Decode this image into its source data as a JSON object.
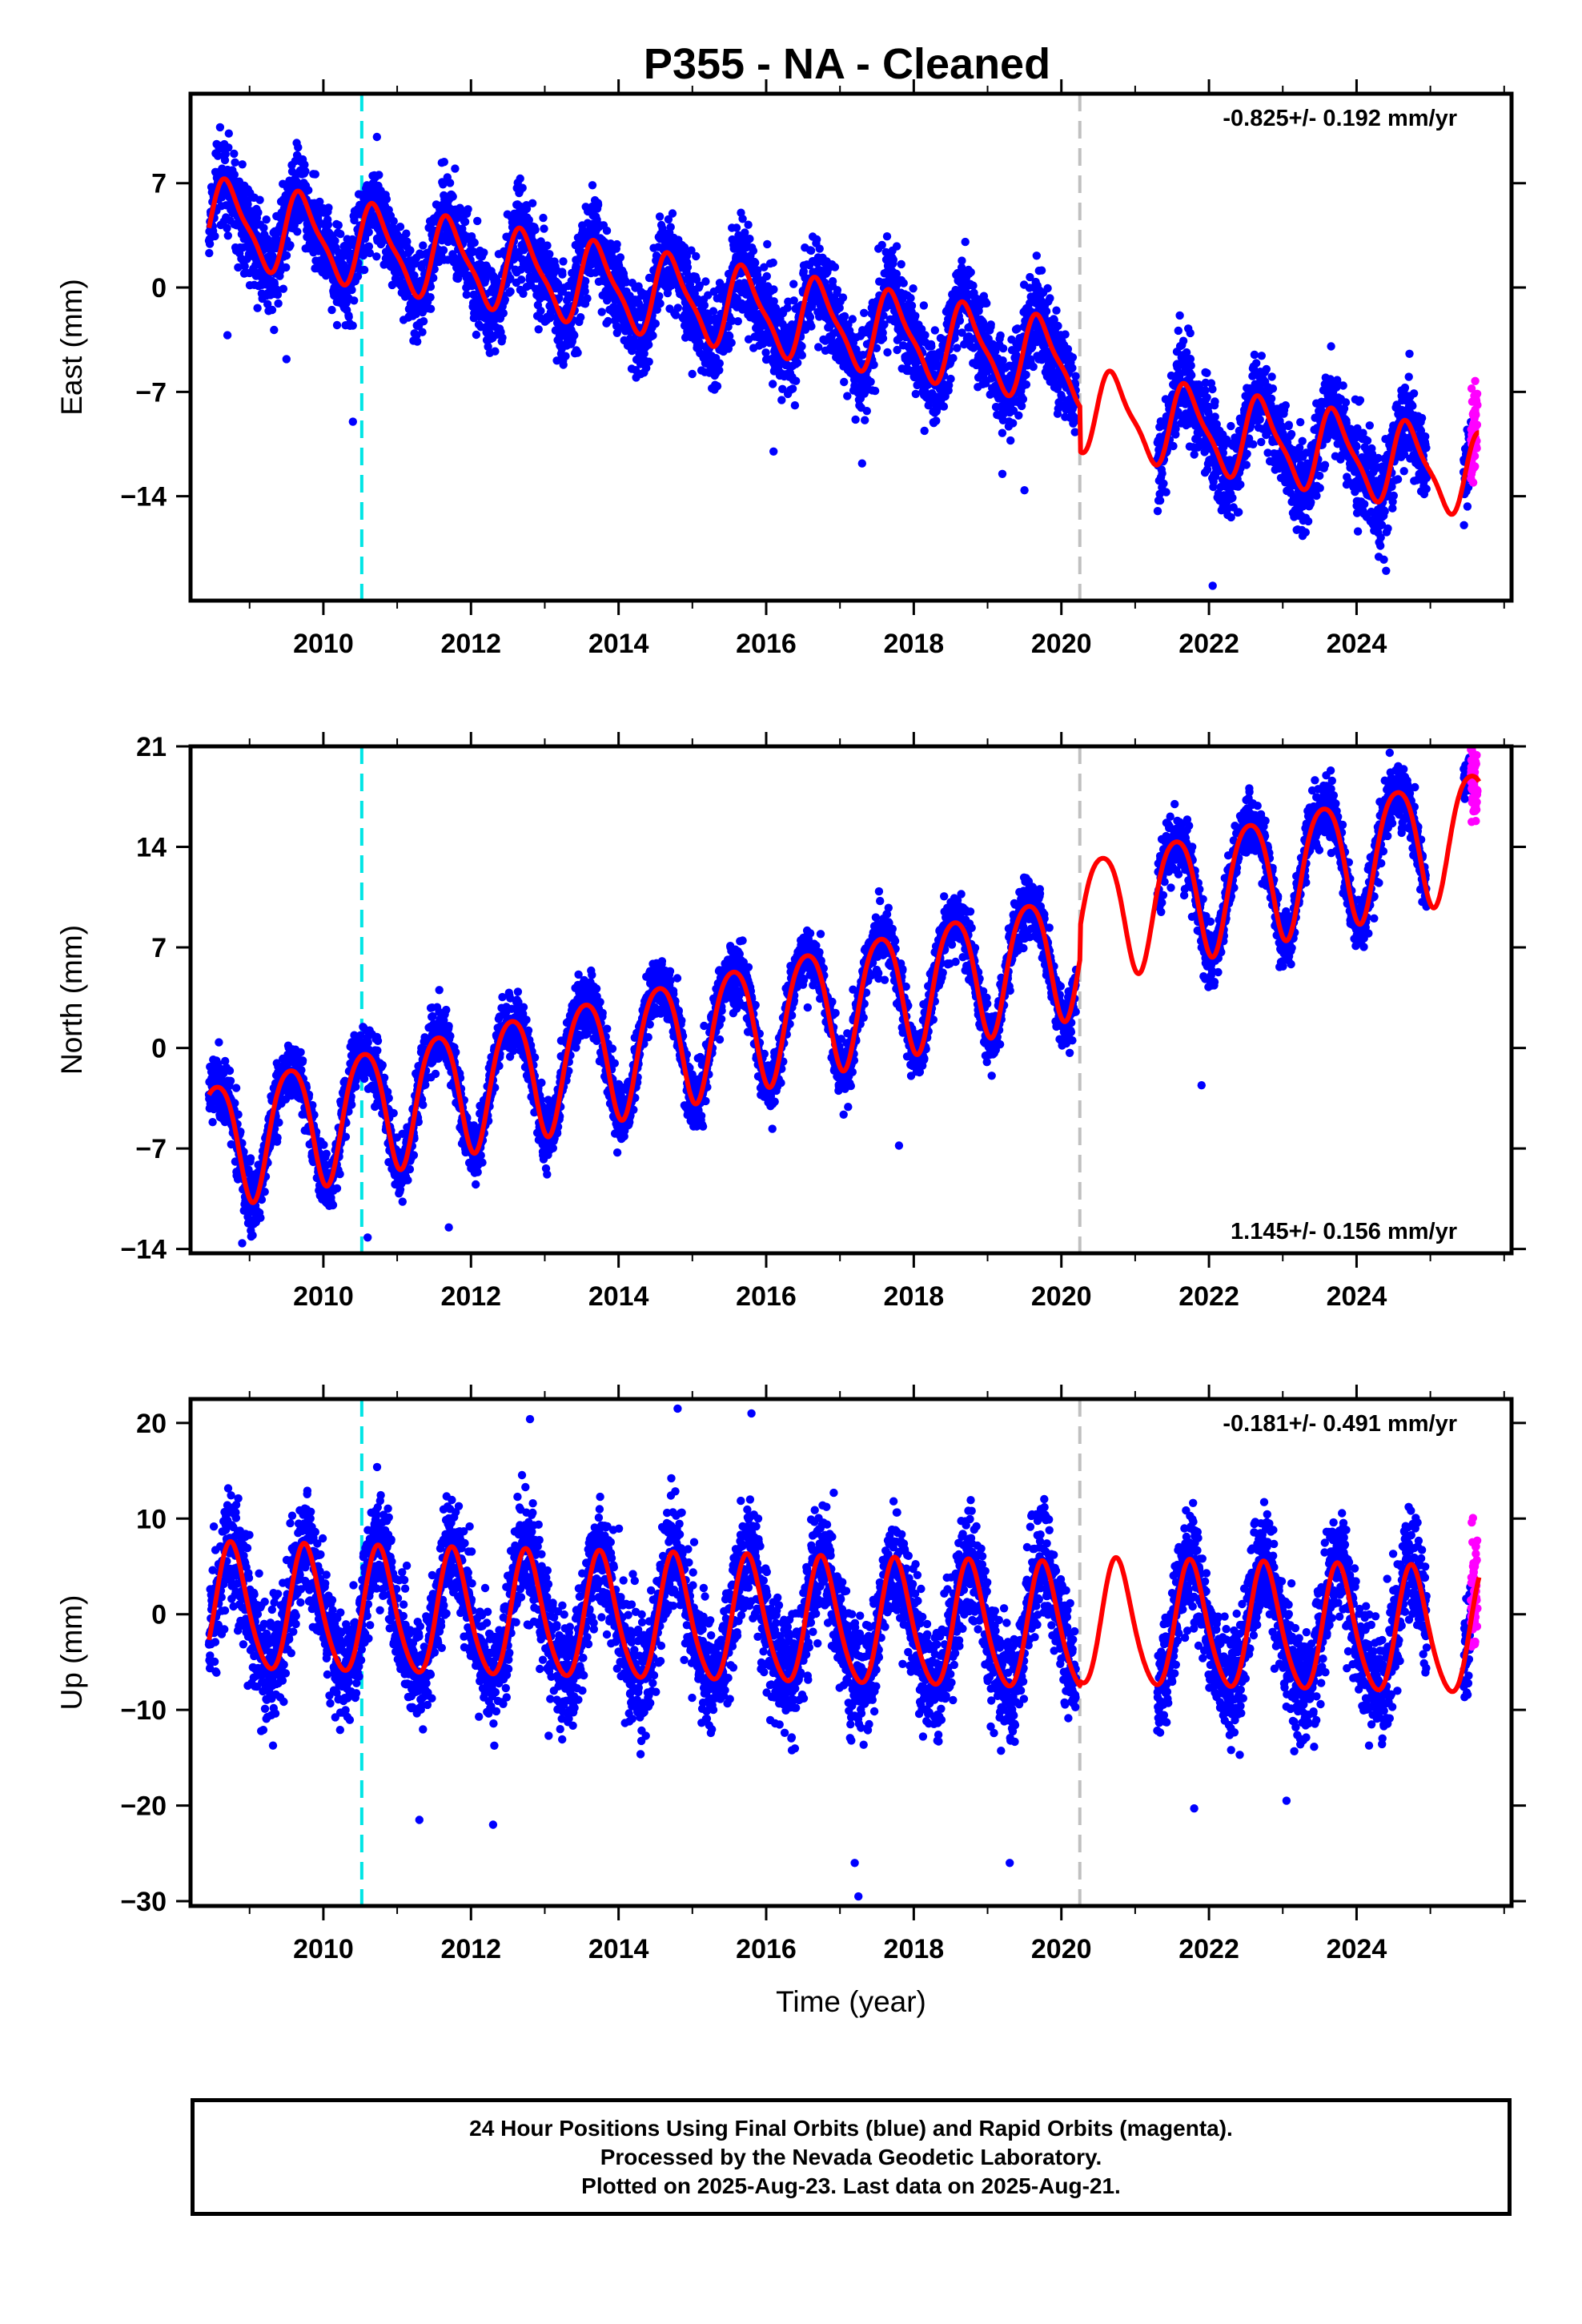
{
  "title": "P355  - NA - Cleaned",
  "xlabel": "Time (year)",
  "footer": {
    "line1": "24 Hour Positions Using Final Orbits (blue) and Rapid Orbits (magenta).",
    "line2": "Processed by the Nevada Geodetic Laboratory.",
    "line3": "Plotted on 2025-Aug-23. Last data on 2025-Aug-21."
  },
  "colors": {
    "final_orbits": "#0000ff",
    "rapid_orbits": "#ff00ff",
    "model_fit": "#ff0000",
    "equipment_change_line": "#00e5e5",
    "data_gap_line": "#c0c0c0"
  },
  "chart_data": [
    {
      "type": "scatter",
      "component": "east",
      "ylabel": "East (mm)",
      "rate_text": "-0.825+/- 0.192 mm/yr",
      "rate_position": "top-right",
      "xlim": [
        2008.2,
        2026.1
      ],
      "ylim": [
        -21,
        13
      ],
      "xticks": [
        2010,
        2012,
        2014,
        2016,
        2018,
        2020,
        2022,
        2024
      ],
      "yticks": [
        -14,
        -7,
        0,
        7
      ],
      "vertical_lines": [
        {
          "x": 2010.52,
          "style": "dashed",
          "color": "cyan"
        },
        {
          "x": 2020.25,
          "style": "dashed",
          "color": "gray"
        }
      ],
      "data_ranges": [
        [
          2008.45,
          2020.2
        ],
        [
          2021.3,
          2024.95
        ],
        [
          2025.45,
          2025.62
        ]
      ],
      "rapid_range": [
        2025.55,
        2025.64
      ],
      "model": {
        "intercept_at_2008_5": 4.5,
        "trend_mm_yr": -0.825,
        "annual_amp": 2.6,
        "annual_peak_frac": 0.72,
        "semiannual_amp": 0.7,
        "semiannual_phase_frac": 0.1,
        "offset_after_2020_25": -3.0
      },
      "noise_sd": 1.9,
      "outliers": [
        [
          2008.7,
          -3.2
        ],
        [
          2009.5,
          -4.8
        ],
        [
          2010.4,
          -9.0
        ],
        [
          2016.1,
          -11.0
        ],
        [
          2017.3,
          -11.8
        ],
        [
          2019.2,
          -12.5
        ],
        [
          2019.5,
          -13.6
        ],
        [
          2022.05,
          -20.0
        ],
        [
          2024.45,
          -21.2
        ],
        [
          2024.4,
          -19.0
        ]
      ]
    },
    {
      "type": "scatter",
      "component": "north",
      "ylabel": "North (mm)",
      "rate_text": "1.145+/- 0.156 mm/yr",
      "rate_position": "bottom-right",
      "xlim": [
        2008.2,
        2026.1
      ],
      "ylim": [
        -14.3,
        21
      ],
      "xticks": [
        2010,
        2012,
        2014,
        2016,
        2018,
        2020,
        2022,
        2024
      ],
      "yticks": [
        -14,
        -7,
        0,
        7,
        14,
        21
      ],
      "vertical_lines": [
        {
          "x": 2010.52,
          "style": "dashed",
          "color": "cyan"
        },
        {
          "x": 2020.25,
          "style": "dashed",
          "color": "gray"
        }
      ],
      "data_ranges": [
        [
          2008.45,
          2020.2
        ],
        [
          2021.3,
          2024.95
        ],
        [
          2025.45,
          2025.62
        ]
      ],
      "rapid_range": [
        2025.55,
        2025.64
      ],
      "model": {
        "intercept_at_2008_5": -6.5,
        "trend_mm_yr": 1.145,
        "annual_amp": 4.3,
        "annual_peak_frac": 0.55,
        "semiannual_amp": 0.6,
        "semiannual_phase_frac": 0.3,
        "offset_after_2020_25": 2.2
      },
      "noise_sd": 1.3,
      "outliers": [
        [
          2008.9,
          -13.6
        ],
        [
          2010.6,
          -13.2
        ],
        [
          2011.7,
          -12.5
        ],
        [
          2017.8,
          -6.8
        ],
        [
          2021.9,
          -2.6
        ]
      ]
    },
    {
      "type": "scatter",
      "component": "up",
      "ylabel": "Up (mm)",
      "rate_text": "-0.181+/- 0.491 mm/yr",
      "rate_position": "top-right",
      "xlim": [
        2008.2,
        2026.1
      ],
      "ylim": [
        -30.5,
        22.5
      ],
      "xticks": [
        2010,
        2012,
        2014,
        2016,
        2018,
        2020,
        2022,
        2024
      ],
      "yticks": [
        -30,
        -20,
        -10,
        0,
        10,
        20
      ],
      "vertical_lines": [
        {
          "x": 2010.52,
          "style": "dashed",
          "color": "cyan"
        },
        {
          "x": 2020.25,
          "style": "dashed",
          "color": "gray"
        }
      ],
      "data_ranges": [
        [
          2008.45,
          2020.2
        ],
        [
          2021.3,
          2024.95
        ],
        [
          2025.45,
          2025.62
        ]
      ],
      "rapid_range": [
        2025.55,
        2025.64
      ],
      "model": {
        "intercept_at_2008_5": 0.5,
        "trend_mm_yr": -0.181,
        "annual_amp": 6.5,
        "annual_peak_frac": 0.76,
        "semiannual_amp": 0.8,
        "semiannual_phase_frac": 0.2,
        "offset_after_2020_25": 0.5
      },
      "noise_sd": 3.8,
      "outliers": [
        [
          2012.8,
          20.4
        ],
        [
          2014.8,
          21.5
        ],
        [
          2015.8,
          21.0
        ],
        [
          2017.2,
          -26.0
        ],
        [
          2017.25,
          -29.5
        ],
        [
          2019.3,
          -26.0
        ],
        [
          2021.8,
          -20.3
        ],
        [
          2023.05,
          -19.5
        ],
        [
          2012.3,
          -22.0
        ],
        [
          2011.3,
          -21.5
        ]
      ]
    }
  ]
}
